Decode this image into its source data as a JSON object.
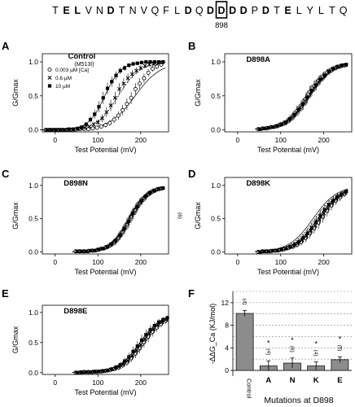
{
  "header": {
    "sequence": [
      "T",
      "E",
      "L",
      "V",
      "N",
      "D",
      "T",
      "N",
      "V",
      "Q",
      "F",
      "L",
      "D",
      "Q",
      "D",
      "D",
      "D",
      "D",
      "P",
      "D",
      "T",
      "E",
      "L",
      "Y",
      "L",
      "T",
      "Q"
    ],
    "bold_indices": [
      1,
      2,
      5,
      12,
      14,
      15,
      16,
      17,
      19,
      21
    ],
    "boxed_index": 15,
    "boxed_label": "898"
  },
  "chart_data": [
    {
      "panel": "A",
      "type": "scatter",
      "title": "Control",
      "subtitle": "(M513I)",
      "ylabel": "G/Gmax",
      "xlabel": "Test Potential (mV)",
      "xlim": [
        -30,
        265
      ],
      "ylim": [
        -0.03,
        1.12
      ],
      "xticks": [
        0,
        100,
        200
      ],
      "yticks": [
        0.0,
        0.5,
        1.0
      ],
      "legend": [
        "0.003 µM [Ca]",
        "0.6 µM",
        "10 µM"
      ],
      "legend_position": "upper-left",
      "series": [
        {
          "name": "0.003 µM [Ca]",
          "marker": "open-circle",
          "v_half": 187,
          "slope": 30,
          "x": [
            -20,
            -10,
            0,
            10,
            20,
            30,
            40,
            50,
            60,
            70,
            80,
            90,
            100,
            110,
            120,
            130,
            140,
            150,
            160,
            170,
            180,
            190,
            200,
            210,
            220,
            230,
            240,
            250
          ],
          "y": [
            0,
            0,
            0,
            0,
            0,
            0,
            0,
            0,
            0.01,
            0.01,
            0.01,
            0.02,
            0.03,
            0.05,
            0.07,
            0.1,
            0.15,
            0.21,
            0.29,
            0.38,
            0.47,
            0.6,
            0.68,
            0.76,
            0.84,
            0.9,
            0.93,
            0.96
          ]
        },
        {
          "name": "0.6 µM",
          "marker": "x",
          "v_half": 148,
          "slope": 25,
          "x": [
            -20,
            -10,
            0,
            10,
            20,
            30,
            40,
            50,
            60,
            70,
            80,
            90,
            100,
            110,
            120,
            130,
            140,
            150,
            160,
            170,
            180,
            190,
            200,
            210,
            220,
            230,
            240,
            250
          ],
          "y": [
            0,
            0,
            0,
            0,
            0,
            0,
            0,
            0.01,
            0.02,
            0.03,
            0.05,
            0.08,
            0.11,
            0.17,
            0.26,
            0.36,
            0.47,
            0.6,
            0.68,
            0.76,
            0.82,
            0.87,
            0.91,
            0.94,
            0.96,
            0.97,
            0.98,
            0.99
          ]
        },
        {
          "name": "10 µM",
          "marker": "filled-square",
          "v_half": 116,
          "slope": 19,
          "x": [
            -20,
            -10,
            0,
            10,
            20,
            30,
            40,
            50,
            60,
            70,
            80,
            90,
            100,
            110,
            120,
            130,
            140,
            150,
            160,
            170,
            180,
            190,
            200,
            210,
            220,
            230,
            240,
            250
          ],
          "y": [
            0,
            0,
            0,
            0,
            0,
            0.01,
            0.01,
            0.02,
            0.04,
            0.08,
            0.15,
            0.23,
            0.34,
            0.47,
            0.61,
            0.71,
            0.8,
            0.87,
            0.91,
            0.95,
            0.97,
            0.98,
            0.99,
            1,
            1,
            1,
            1,
            1
          ]
        }
      ]
    },
    {
      "panel": "B",
      "type": "scatter",
      "title": "D898A",
      "ylabel": "G/Gmax",
      "xlabel": "Test Potential (mV)",
      "xlim": [
        -30,
        265
      ],
      "ylim": [
        -0.03,
        1.12
      ],
      "xticks": [
        0,
        100,
        200
      ],
      "yticks": [
        0.0,
        0.5,
        1.0
      ],
      "series": [
        {
          "name": "0.003 µM",
          "marker": "open-circle",
          "v_half": 168,
          "slope": 27,
          "x": [
            50,
            60,
            70,
            80,
            90,
            100,
            110,
            120,
            130,
            140,
            150,
            160,
            170,
            180,
            190,
            200,
            210,
            220,
            230,
            240,
            250
          ],
          "y": [
            0.01,
            0.02,
            0.02,
            0.04,
            0.05,
            0.07,
            0.1,
            0.14,
            0.2,
            0.28,
            0.35,
            0.45,
            0.56,
            0.64,
            0.72,
            0.78,
            0.84,
            0.88,
            0.91,
            0.93,
            0.95
          ]
        },
        {
          "name": "0.6 µM",
          "marker": "x",
          "v_half": 166,
          "slope": 27,
          "x": [
            50,
            60,
            70,
            80,
            90,
            100,
            110,
            120,
            130,
            140,
            150,
            160,
            170,
            180,
            190,
            200,
            210,
            220,
            230,
            240,
            250
          ],
          "y": [
            0.01,
            0.02,
            0.03,
            0.04,
            0.05,
            0.08,
            0.1,
            0.15,
            0.21,
            0.28,
            0.37,
            0.46,
            0.56,
            0.65,
            0.73,
            0.79,
            0.85,
            0.89,
            0.92,
            0.94,
            0.95
          ]
        },
        {
          "name": "10 µM",
          "marker": "filled-square",
          "v_half": 164,
          "slope": 27,
          "x": [
            50,
            60,
            70,
            80,
            90,
            100,
            110,
            120,
            130,
            140,
            150,
            160,
            170,
            180,
            190,
            200,
            210,
            220,
            230,
            240,
            250
          ],
          "y": [
            0.01,
            0.02,
            0.03,
            0.04,
            0.06,
            0.08,
            0.11,
            0.16,
            0.22,
            0.3,
            0.38,
            0.48,
            0.58,
            0.66,
            0.74,
            0.8,
            0.86,
            0.9,
            0.93,
            0.95,
            0.96
          ]
        }
      ]
    },
    {
      "panel": "C",
      "type": "scatter",
      "title": "D898N",
      "ylabel": "G/Gmax",
      "xlabel": "Test Potential (mV)",
      "xlim": [
        -30,
        265
      ],
      "ylim": [
        -0.03,
        1.12
      ],
      "xticks": [
        0,
        100,
        200
      ],
      "yticks": [
        0.0,
        0.5,
        1.0
      ],
      "annotation": "(6)",
      "series": [
        {
          "name": "0.003 µM",
          "marker": "open-circle",
          "v_half": 176,
          "slope": 22,
          "x": [
            50,
            60,
            70,
            80,
            90,
            100,
            110,
            120,
            130,
            140,
            150,
            160,
            170,
            180,
            190,
            200,
            210,
            220,
            230,
            240,
            250
          ],
          "y": [
            0.01,
            0.01,
            0.01,
            0.01,
            0.02,
            0.03,
            0.05,
            0.07,
            0.1,
            0.15,
            0.22,
            0.31,
            0.42,
            0.54,
            0.64,
            0.74,
            0.81,
            0.87,
            0.91,
            0.94,
            0.95
          ]
        },
        {
          "name": "0.6 µM",
          "marker": "x",
          "v_half": 174,
          "slope": 22,
          "x": [
            50,
            60,
            70,
            80,
            90,
            100,
            110,
            120,
            130,
            140,
            150,
            160,
            170,
            180,
            190,
            200,
            210,
            220,
            230,
            240,
            250
          ],
          "y": [
            0.01,
            0.01,
            0.01,
            0.02,
            0.02,
            0.03,
            0.05,
            0.07,
            0.11,
            0.16,
            0.24,
            0.33,
            0.44,
            0.56,
            0.66,
            0.75,
            0.82,
            0.88,
            0.92,
            0.94,
            0.96
          ]
        },
        {
          "name": "10 µM",
          "marker": "filled-square",
          "v_half": 172,
          "slope": 22,
          "x": [
            50,
            60,
            70,
            80,
            90,
            100,
            110,
            120,
            130,
            140,
            150,
            160,
            170,
            180,
            190,
            200,
            210,
            220,
            230,
            240,
            250
          ],
          "y": [
            0.01,
            0.01,
            0.01,
            0.02,
            0.02,
            0.04,
            0.05,
            0.08,
            0.12,
            0.17,
            0.25,
            0.35,
            0.46,
            0.58,
            0.68,
            0.77,
            0.84,
            0.89,
            0.92,
            0.95,
            0.96
          ]
        }
      ]
    },
    {
      "panel": "D",
      "type": "scatter",
      "title": "D898K",
      "ylabel": "G/Gmax",
      "xlabel": "Test Potential (mV)",
      "xlim": [
        -30,
        265
      ],
      "ylim": [
        -0.03,
        1.12
      ],
      "xticks": [
        0,
        100,
        200
      ],
      "yticks": [
        0.0,
        0.5,
        1.0
      ],
      "series": [
        {
          "name": "0.003 µM",
          "marker": "open-circle",
          "v_half": 186,
          "slope": 28,
          "x": [
            50,
            60,
            70,
            80,
            90,
            100,
            110,
            120,
            130,
            140,
            150,
            160,
            170,
            180,
            190,
            200,
            210,
            220,
            230,
            240,
            250
          ],
          "y": [
            0,
            0.01,
            0.01,
            0.01,
            0.02,
            0.03,
            0.04,
            0.06,
            0.08,
            0.11,
            0.15,
            0.21,
            0.28,
            0.36,
            0.44,
            0.53,
            0.62,
            0.7,
            0.77,
            0.82,
            0.87
          ]
        },
        {
          "name": "0.6 µM",
          "marker": "x",
          "v_half": 180,
          "slope": 28,
          "x": [
            50,
            60,
            70,
            80,
            90,
            100,
            110,
            120,
            130,
            140,
            150,
            160,
            170,
            180,
            190,
            200,
            210,
            220,
            230,
            240,
            250
          ],
          "y": [
            0,
            0.01,
            0.01,
            0.02,
            0.02,
            0.03,
            0.05,
            0.07,
            0.09,
            0.13,
            0.18,
            0.24,
            0.32,
            0.4,
            0.49,
            0.58,
            0.66,
            0.74,
            0.8,
            0.85,
            0.89
          ]
        },
        {
          "name": "10 µM",
          "marker": "filled-square",
          "v_half": 175,
          "slope": 28,
          "x": [
            50,
            60,
            70,
            80,
            90,
            100,
            110,
            120,
            130,
            140,
            150,
            160,
            170,
            180,
            190,
            200,
            210,
            220,
            230,
            240,
            250
          ],
          "y": [
            0,
            0.01,
            0.01,
            0.02,
            0.02,
            0.04,
            0.05,
            0.08,
            0.11,
            0.15,
            0.21,
            0.28,
            0.36,
            0.45,
            0.54,
            0.63,
            0.71,
            0.77,
            0.83,
            0.87,
            0.91
          ]
        }
      ]
    },
    {
      "panel": "E",
      "type": "scatter",
      "title": "D898E",
      "ylabel": "G/Gmax",
      "xlabel": "Test Potential (mV)",
      "xlim": [
        -30,
        265
      ],
      "ylim": [
        -0.03,
        1.12
      ],
      "xticks": [
        0,
        100,
        200
      ],
      "yticks": [
        0.0,
        0.5,
        1.0
      ],
      "series": [
        {
          "name": "0.003 µM",
          "marker": "open-circle",
          "v_half": 210,
          "slope": 26,
          "x": [
            50,
            60,
            70,
            80,
            90,
            100,
            110,
            120,
            130,
            140,
            150,
            160,
            170,
            180,
            190,
            200,
            210,
            220,
            230,
            240,
            250,
            260
          ],
          "y": [
            0,
            0,
            0.01,
            0.01,
            0.01,
            0.01,
            0.02,
            0.03,
            0.04,
            0.06,
            0.08,
            0.12,
            0.17,
            0.24,
            0.32,
            0.41,
            0.51,
            0.6,
            0.68,
            0.75,
            0.81,
            0.86
          ]
        },
        {
          "name": "0.6 µM",
          "marker": "x",
          "v_half": 205,
          "slope": 26,
          "x": [
            50,
            60,
            70,
            80,
            90,
            100,
            110,
            120,
            130,
            140,
            150,
            160,
            170,
            180,
            190,
            200,
            210,
            220,
            230,
            240,
            250,
            260
          ],
          "y": [
            0,
            0,
            0.01,
            0.01,
            0.01,
            0.02,
            0.02,
            0.03,
            0.05,
            0.07,
            0.1,
            0.14,
            0.2,
            0.28,
            0.37,
            0.46,
            0.56,
            0.65,
            0.72,
            0.79,
            0.84,
            0.88
          ]
        },
        {
          "name": "10 µM",
          "marker": "filled-square",
          "v_half": 198,
          "slope": 26,
          "x": [
            50,
            60,
            70,
            80,
            90,
            100,
            110,
            120,
            130,
            140,
            150,
            160,
            170,
            180,
            190,
            200,
            210,
            220,
            230,
            240,
            250,
            260
          ],
          "y": [
            0,
            0.01,
            0.01,
            0.01,
            0.02,
            0.02,
            0.03,
            0.04,
            0.06,
            0.09,
            0.13,
            0.19,
            0.26,
            0.35,
            0.44,
            0.54,
            0.63,
            0.71,
            0.78,
            0.84,
            0.88,
            0.91
          ]
        }
      ]
    },
    {
      "panel": "F",
      "type": "bar",
      "ylabel": "-ΔΔG_Ca (KJ/mol)",
      "xlabel": "Mutations at D898",
      "ylim": [
        -1,
        14
      ],
      "yticks": [
        0,
        4,
        8,
        12
      ],
      "categories": [
        "Control",
        "A",
        "N",
        "K",
        "E"
      ],
      "values": [
        10.1,
        0.8,
        1.3,
        0.8,
        1.9
      ],
      "errors": [
        0.5,
        0.9,
        0.9,
        0.7,
        0.5
      ],
      "n_labels": [
        "(4)",
        "(4)",
        "(6)",
        "(4)",
        "(5)"
      ],
      "significance": [
        "",
        "*",
        "*",
        "*",
        "*"
      ],
      "dashed_gridlines": [
        2,
        4,
        6,
        8,
        10,
        12,
        14
      ],
      "bar_color": "#8c8c8c"
    }
  ]
}
